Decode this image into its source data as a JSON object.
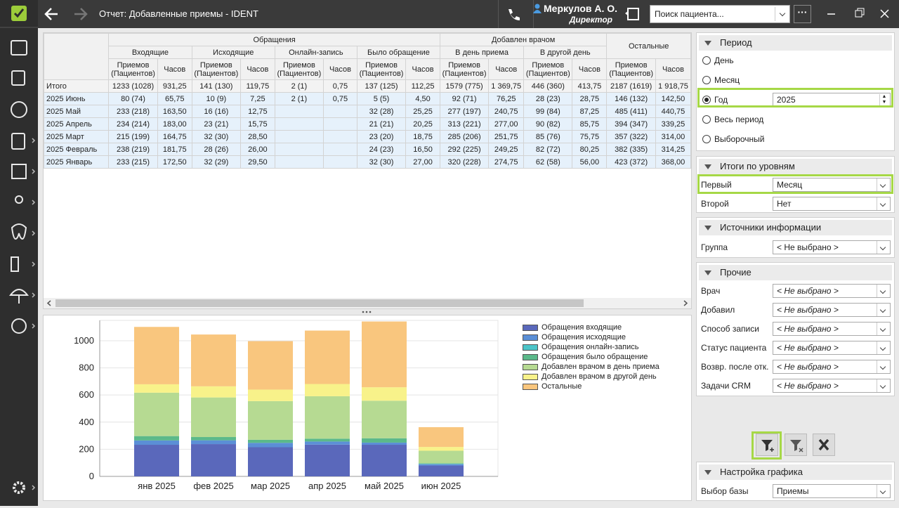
{
  "titlebar": {
    "title": "Отчет: Добавленные приемы - IDENT",
    "user_name": "Меркулов А. О.",
    "user_role": "Директор",
    "search_placeholder": "Поиск пациента..."
  },
  "table": {
    "groups": [
      {
        "label": "Обращения",
        "subs": [
          "Входящие",
          "Исходящие",
          "Онлайн-запись",
          "Было обращение"
        ]
      },
      {
        "label": "Добавлен врачом",
        "subs": [
          "В день приема",
          "В другой день"
        ]
      },
      {
        "label": "Остальные",
        "subs": []
      }
    ],
    "metric_labels": [
      "Приемов (Пациентов)",
      "Часов"
    ],
    "rows": [
      [
        "Итого",
        "1233 (1028)",
        "931,25",
        "141 (130)",
        "119,75",
        "2 (1)",
        "0,75",
        "137 (125)",
        "112,25",
        "1579 (775)",
        "1 369,75",
        "446 (360)",
        "413,75",
        "2187 (1619)",
        "1 918,75"
      ],
      [
        "2025 Июнь",
        "80 (74)",
        "65,75",
        "10 (9)",
        "7,25",
        "2 (1)",
        "0,75",
        "5 (5)",
        "4,50",
        "92 (71)",
        "76,25",
        "28 (23)",
        "28,75",
        "146 (132)",
        "142,50"
      ],
      [
        "2025 Май",
        "233 (218)",
        "163,50",
        "16 (16)",
        "12,75",
        null,
        null,
        "32 (28)",
        "25,25",
        "277 (197)",
        "240,75",
        "99 (84)",
        "87,25",
        "485 (411)",
        "440,75"
      ],
      [
        "2025 Апрель",
        "234 (214)",
        "183,00",
        "23 (21)",
        "15,75",
        null,
        null,
        "21 (21)",
        "20,25",
        "313 (221)",
        "277,00",
        "90 (82)",
        "85,75",
        "394 (347)",
        "339,25"
      ],
      [
        "2025 Март",
        "215 (199)",
        "164,75",
        "32 (30)",
        "28,50",
        null,
        null,
        "23 (20)",
        "18,75",
        "285 (206)",
        "251,75",
        "85 (76)",
        "75,75",
        "357 (322)",
        "314,00"
      ],
      [
        "2025 Февраль",
        "238 (219)",
        "181,75",
        "28 (26)",
        "26,00",
        null,
        null,
        "24 (23)",
        "16,50",
        "292 (225)",
        "249,25",
        "82 (72)",
        "80,25",
        "382 (335)",
        "314,25"
      ],
      [
        "2025 Январь",
        "233 (215)",
        "172,50",
        "32 (29)",
        "29,50",
        null,
        null,
        "32 (30)",
        "27,00",
        "320 (228)",
        "274,75",
        "62 (58)",
        "56,00",
        "423 (372)",
        "368,00"
      ]
    ]
  },
  "chart_data": {
    "type": "bar",
    "stacked": true,
    "categories": [
      "янв 2025",
      "фев 2025",
      "мар 2025",
      "апр 2025",
      "май 2025",
      "июн 2025"
    ],
    "series": [
      {
        "name": "Обращения входящие",
        "color": "#5a68bb",
        "values": [
          233,
          238,
          215,
          234,
          233,
          80
        ]
      },
      {
        "name": "Обращения исходящие",
        "color": "#5b8fd6",
        "values": [
          32,
          28,
          32,
          23,
          16,
          10
        ]
      },
      {
        "name": "Обращения онлайн-запись",
        "color": "#4cc4c8",
        "values": [
          0,
          0,
          0,
          0,
          0,
          2
        ]
      },
      {
        "name": "Обращения было обращение",
        "color": "#5bb98a",
        "values": [
          32,
          24,
          23,
          21,
          32,
          5
        ]
      },
      {
        "name": "Добавлен врачом в день приема",
        "color": "#b6da92",
        "values": [
          320,
          292,
          285,
          313,
          277,
          92
        ]
      },
      {
        "name": "Добавлен врачом в другой день",
        "color": "#f8f28a",
        "values": [
          62,
          82,
          85,
          90,
          99,
          28
        ]
      },
      {
        "name": "Остальные",
        "color": "#f9c67e",
        "values": [
          423,
          382,
          357,
          394,
          485,
          146
        ]
      }
    ],
    "ylim": [
      0,
      1150
    ],
    "yticks": [
      0,
      200,
      400,
      600,
      800,
      1000
    ],
    "grid": true,
    "legend": "right"
  },
  "panel": {
    "period": {
      "title": "Период",
      "options": [
        "День",
        "Месяц",
        "Год",
        "Весь период",
        "Выборочный"
      ],
      "selected": 2,
      "year": "2025"
    },
    "levels": {
      "title": "Итоги по уровням",
      "fields": [
        {
          "label": "Первый",
          "value": "Месяц"
        },
        {
          "label": "Второй",
          "value": "Нет"
        }
      ]
    },
    "sources": {
      "title": "Источники информации",
      "fields": [
        {
          "label": "Группа",
          "value": "< Не выбрано >"
        }
      ]
    },
    "other": {
      "title": "Прочие",
      "fields": [
        {
          "label": "Врач",
          "value": "< Не выбрано >"
        },
        {
          "label": "Добавил",
          "value": "< Не выбрано >"
        },
        {
          "label": "Способ записи",
          "value": "< Не выбрано >"
        },
        {
          "label": "Статус пациента",
          "value": "< Не выбрано >"
        },
        {
          "label": "Возвр. после отк.",
          "value": "< Не выбрано >"
        },
        {
          "label": "Задачи CRM",
          "value": "< Не выбрано >"
        }
      ]
    },
    "chart_settings": {
      "title": "Настройка графика",
      "fields": [
        {
          "label": "Выбор базы",
          "value": "Приемы"
        }
      ]
    }
  }
}
